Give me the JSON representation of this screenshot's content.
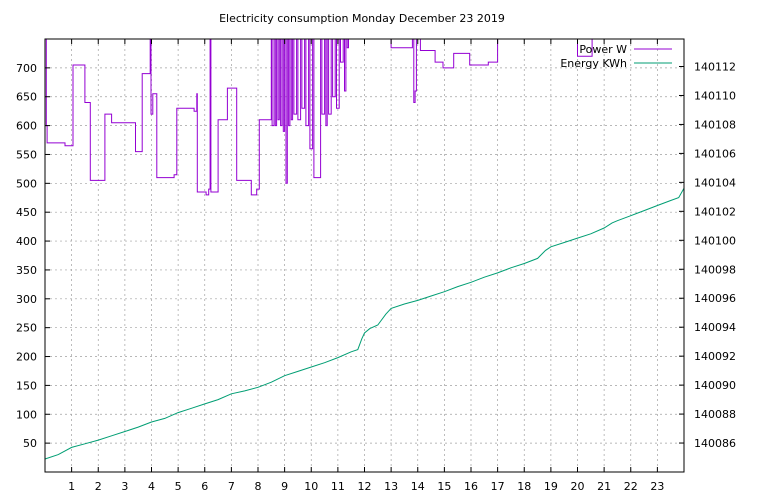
{
  "chart_data": {
    "type": "line",
    "title": "Electricity consumption Monday December 23 2019",
    "xlabel": "",
    "ylabel": "",
    "y2label": "",
    "xlim": [
      0,
      24
    ],
    "ylim": [
      0,
      750
    ],
    "y2lim": [
      140084.0,
      140113.9
    ],
    "x_ticks": [
      1,
      2,
      3,
      4,
      5,
      6,
      7,
      8,
      9,
      10,
      11,
      12,
      13,
      14,
      15,
      16,
      17,
      18,
      19,
      20,
      21,
      22,
      23
    ],
    "y_ticks": [
      50,
      100,
      150,
      200,
      250,
      300,
      350,
      400,
      450,
      500,
      550,
      600,
      650,
      700
    ],
    "y2_ticks": [
      140086,
      140088,
      140090,
      140092,
      140094,
      140096,
      140098,
      140100,
      140102,
      140104,
      140106,
      140108,
      140110,
      140112
    ],
    "grid": true,
    "legend_position": "top-right",
    "series": [
      {
        "name": "Power W",
        "axis": "y",
        "color": "#9400d3",
        "step": true,
        "points": [
          [
            0.0,
            750
          ],
          [
            0.05,
            600
          ],
          [
            0.08,
            570
          ],
          [
            0.75,
            565
          ],
          [
            1.05,
            705
          ],
          [
            1.5,
            640
          ],
          [
            1.7,
            505
          ],
          [
            2.25,
            620
          ],
          [
            2.5,
            605
          ],
          [
            3.4,
            555
          ],
          [
            3.65,
            690
          ],
          [
            3.95,
            750
          ],
          [
            3.98,
            620
          ],
          [
            4.05,
            655
          ],
          [
            4.2,
            510
          ],
          [
            4.85,
            515
          ],
          [
            4.95,
            630
          ],
          [
            5.6,
            625
          ],
          [
            5.7,
            655
          ],
          [
            5.72,
            485
          ],
          [
            6.05,
            480
          ],
          [
            6.15,
            490
          ],
          [
            6.2,
            750
          ],
          [
            6.23,
            485
          ],
          [
            6.5,
            610
          ],
          [
            6.85,
            665
          ],
          [
            7.2,
            505
          ],
          [
            7.75,
            480
          ],
          [
            7.95,
            490
          ],
          [
            8.05,
            610
          ],
          [
            8.5,
            750
          ],
          [
            8.53,
            600
          ],
          [
            8.6,
            750
          ],
          [
            8.65,
            600
          ],
          [
            8.7,
            750
          ],
          [
            8.75,
            610
          ],
          [
            8.8,
            750
          ],
          [
            8.85,
            600
          ],
          [
            8.9,
            750
          ],
          [
            8.95,
            590
          ],
          [
            9.0,
            750
          ],
          [
            9.05,
            500
          ],
          [
            9.1,
            750
          ],
          [
            9.15,
            600
          ],
          [
            9.2,
            750
          ],
          [
            9.25,
            610
          ],
          [
            9.3,
            750
          ],
          [
            9.35,
            620
          ],
          [
            9.45,
            750
          ],
          [
            9.5,
            610
          ],
          [
            9.6,
            750
          ],
          [
            9.65,
            630
          ],
          [
            9.75,
            750
          ],
          [
            9.8,
            600
          ],
          [
            9.9,
            750
          ],
          [
            9.95,
            560
          ],
          [
            10.05,
            750
          ],
          [
            10.1,
            510
          ],
          [
            10.35,
            750
          ],
          [
            10.4,
            620
          ],
          [
            10.5,
            750
          ],
          [
            10.55,
            600
          ],
          [
            10.6,
            750
          ],
          [
            10.65,
            620
          ],
          [
            10.75,
            750
          ],
          [
            10.8,
            650
          ],
          [
            10.9,
            750
          ],
          [
            10.95,
            630
          ],
          [
            11.05,
            750
          ],
          [
            11.1,
            710
          ],
          [
            11.2,
            750
          ],
          [
            11.25,
            660
          ],
          [
            11.3,
            750
          ],
          [
            11.35,
            735
          ],
          [
            11.4,
            750
          ],
          [
            13.0,
            735
          ],
          [
            13.8,
            750
          ],
          [
            13.85,
            640
          ],
          [
            13.9,
            660
          ],
          [
            13.95,
            750
          ],
          [
            14.1,
            730
          ],
          [
            14.65,
            710
          ],
          [
            14.95,
            700
          ],
          [
            15.35,
            725
          ],
          [
            15.95,
            705
          ],
          [
            16.65,
            710
          ],
          [
            17.0,
            750
          ],
          [
            17.1,
            750
          ],
          [
            20.0,
            720
          ],
          [
            20.25,
            720
          ],
          [
            20.55,
            750
          ]
        ]
      },
      {
        "name": "Energy KWh",
        "axis": "y2",
        "color": "#009e73",
        "step": false,
        "points": [
          [
            0,
            140084.9
          ],
          [
            0.5,
            140085.2
          ],
          [
            1,
            140085.7
          ],
          [
            1.5,
            140085.95
          ],
          [
            2,
            140086.2
          ],
          [
            2.5,
            140086.5
          ],
          [
            3,
            140086.8
          ],
          [
            3.5,
            140087.1
          ],
          [
            4,
            140087.45
          ],
          [
            4.5,
            140087.7
          ],
          [
            5,
            140088.1
          ],
          [
            5.5,
            140088.4
          ],
          [
            6,
            140088.7
          ],
          [
            6.5,
            140089.0
          ],
          [
            7,
            140089.4
          ],
          [
            7.5,
            140089.6
          ],
          [
            8,
            140089.85
          ],
          [
            8.5,
            140090.2
          ],
          [
            9,
            140090.65
          ],
          [
            9.5,
            140090.95
          ],
          [
            10,
            140091.25
          ],
          [
            10.5,
            140091.55
          ],
          [
            11,
            140091.9
          ],
          [
            11.5,
            140092.3
          ],
          [
            11.75,
            140092.45
          ],
          [
            11.9,
            140093.2
          ],
          [
            12,
            140093.6
          ],
          [
            12.2,
            140093.9
          ],
          [
            12.5,
            140094.15
          ],
          [
            12.8,
            140094.9
          ],
          [
            13,
            140095.3
          ],
          [
            13.5,
            140095.6
          ],
          [
            14,
            140095.85
          ],
          [
            14.5,
            140096.15
          ],
          [
            15,
            140096.45
          ],
          [
            15.5,
            140096.8
          ],
          [
            16,
            140097.1
          ],
          [
            16.5,
            140097.45
          ],
          [
            17,
            140097.75
          ],
          [
            17.5,
            140098.1
          ],
          [
            18,
            140098.4
          ],
          [
            18.5,
            140098.75
          ],
          [
            18.8,
            140099.3
          ],
          [
            19,
            140099.55
          ],
          [
            19.5,
            140099.85
          ],
          [
            20,
            140100.15
          ],
          [
            20.5,
            140100.45
          ],
          [
            21,
            140100.85
          ],
          [
            21.3,
            140101.2
          ],
          [
            21.5,
            140101.35
          ],
          [
            22,
            140101.7
          ],
          [
            22.5,
            140102.05
          ],
          [
            23,
            140102.4
          ],
          [
            23.5,
            140102.75
          ],
          [
            23.8,
            140102.95
          ],
          [
            24,
            140103.6
          ]
        ]
      }
    ]
  }
}
